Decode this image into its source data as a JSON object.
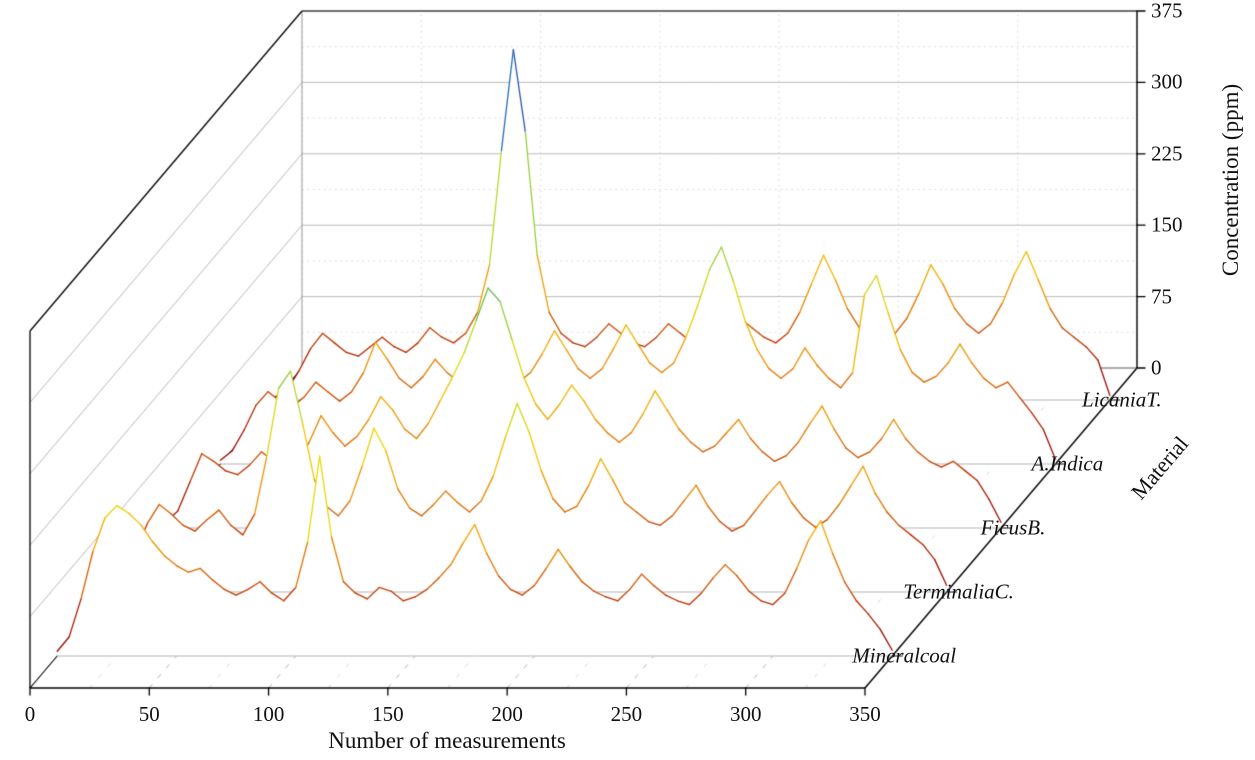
{
  "figure": {
    "background": "#ffffff",
    "frame_color": "#000000",
    "grid_color": "#bbbbbb",
    "minor_grid_color": "#d7d7d7",
    "floor_dash_color": "#b5b5b5",
    "baseline_color": "#aaaaaa",
    "fill_color": "#ffffff"
  },
  "chart_data": {
    "type": "line",
    "subtype": "3d-waterfall",
    "title": "",
    "xlabel": "Number of measurements",
    "ylabel": "Material",
    "zlabel": "Concentration (ppm)",
    "x_range": [
      0,
      350
    ],
    "z_range": [
      0,
      375
    ],
    "x_ticks": [
      0,
      50,
      100,
      150,
      200,
      250,
      300,
      350
    ],
    "z_ticks": [
      0,
      75,
      150,
      225,
      300,
      375
    ],
    "grid": true,
    "legend": "none",
    "x_step": 5,
    "colormap": [
      [
        0,
        "#8b0000"
      ],
      [
        60,
        "#c03000"
      ],
      [
        110,
        "#f09000"
      ],
      [
        160,
        "#f2d800"
      ],
      [
        205,
        "#b8d832"
      ],
      [
        245,
        "#58b848"
      ],
      [
        285,
        "#28b8b0"
      ],
      [
        325,
        "#2858b8"
      ],
      [
        375,
        "#181868"
      ]
    ],
    "series": [
      {
        "name": "Mineralcoal",
        "values": [
          5,
          20,
          60,
          110,
          145,
          158,
          150,
          138,
          120,
          105,
          95,
          88,
          92,
          80,
          70,
          64,
          70,
          78,
          66,
          58,
          72,
          120,
          210,
          125,
          78,
          66,
          60,
          72,
          68,
          58,
          62,
          70,
          82,
          96,
          118,
          138,
          108,
          84,
          70,
          64,
          74,
          92,
          112,
          94,
          78,
          68,
          62,
          58,
          70,
          86,
          74,
          64,
          58,
          54,
          66,
          82,
          96,
          84,
          68,
          58,
          54,
          66,
          92,
          122,
          142,
          108,
          78,
          58,
          44,
          28,
          6
        ]
      },
      {
        "name": "TerminaliaC.",
        "values": [
          4,
          14,
          42,
          72,
          92,
          82,
          70,
          64,
          76,
          86,
          70,
          60,
          82,
          142,
          214,
          232,
          178,
          118,
          90,
          80,
          96,
          132,
          172,
          148,
          108,
          88,
          80,
          92,
          106,
          94,
          84,
          96,
          122,
          162,
          198,
          168,
          128,
          98,
          84,
          90,
          112,
          140,
          118,
          94,
          84,
          74,
          70,
          80,
          96,
          112,
          90,
          74,
          64,
          70,
          86,
          102,
          116,
          94,
          78,
          68,
          76,
          92,
          112,
          132,
          104,
          84,
          70,
          60,
          50,
          34,
          7
        ]
      },
      {
        "name": "FicusB.",
        "values": [
          6,
          18,
          48,
          78,
          70,
          60,
          56,
          66,
          80,
          70,
          60,
          70,
          90,
          118,
          100,
          86,
          96,
          114,
          138,
          124,
          104,
          94,
          110,
          134,
          158,
          184,
          218,
          252,
          238,
          198,
          158,
          130,
          114,
          130,
          150,
          134,
          114,
          100,
          90,
          100,
          120,
          144,
          124,
          104,
          90,
          80,
          86,
          100,
          114,
          94,
          80,
          70,
          76,
          90,
          110,
          128,
          104,
          84,
          74,
          80,
          94,
          114,
          94,
          80,
          70,
          64,
          70,
          60,
          50,
          30,
          6
        ]
      },
      {
        "name": "A.Indica",
        "values": [
          4,
          14,
          36,
          62,
          76,
          66,
          60,
          70,
          86,
          76,
          66,
          76,
          96,
          128,
          110,
          90,
          80,
          92,
          110,
          96,
          86,
          100,
          126,
          110,
          94,
          86,
          96,
          116,
          140,
          120,
          100,
          90,
          100,
          122,
          146,
          126,
          106,
          96,
          106,
          132,
          166,
          204,
          228,
          192,
          150,
          120,
          100,
          90,
          100,
          122,
          104,
          90,
          80,
          96,
          178,
          198,
          158,
          120,
          96,
          86,
          92,
          106,
          126,
          106,
          90,
          80,
          86,
          70,
          54,
          36,
          5
        ]
      },
      {
        "name": "LicaniaT.",
        "values": [
          3,
          10,
          30,
          54,
          70,
          60,
          50,
          46,
          56,
          66,
          56,
          50,
          60,
          76,
          66,
          60,
          70,
          92,
          142,
          262,
          368,
          282,
          152,
          92,
          70,
          60,
          56,
          66,
          80,
          70,
          60,
          56,
          66,
          80,
          70,
          60,
          56,
          60,
          70,
          86,
          76,
          66,
          60,
          70,
          92,
          122,
          152,
          126,
          96,
          76,
          66,
          60,
          70,
          86,
          112,
          142,
          122,
          96,
          80,
          70,
          80,
          102,
          132,
          156,
          126,
          96,
          76,
          66,
          56,
          42,
          5
        ]
      }
    ]
  }
}
